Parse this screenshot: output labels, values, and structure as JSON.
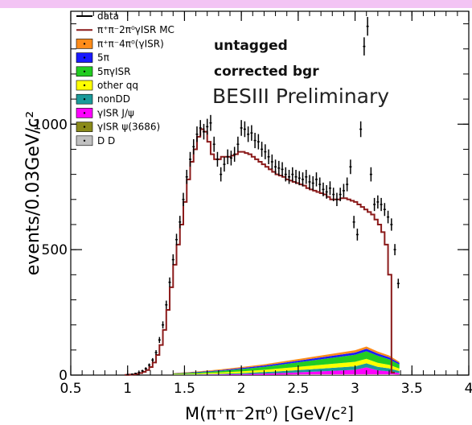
{
  "colors": {
    "top_band": "#f3c4f4",
    "data_markers": "#000000",
    "mc_line": "#8b1a1a"
  },
  "chart_data": {
    "type": "histogram",
    "xlabel": "M(π⁺π⁻2π⁰) [GeV/c²]",
    "ylabel": "events/0.03GeV/c²",
    "xlim": [
      0.5,
      4.0
    ],
    "ylim": [
      0,
      1450
    ],
    "x_ticks": [
      {
        "value": 0.5,
        "label": "0.5"
      },
      {
        "value": 1.0,
        "label": "1"
      },
      {
        "value": 1.5,
        "label": "1.5"
      },
      {
        "value": 2.0,
        "label": "2"
      },
      {
        "value": 2.5,
        "label": "2.5"
      },
      {
        "value": 3.0,
        "label": "3"
      },
      {
        "value": 3.5,
        "label": "3.5"
      },
      {
        "value": 4.0,
        "label": "4"
      }
    ],
    "y_ticks": [
      {
        "value": 0,
        "label": "0"
      },
      {
        "value": 500,
        "label": "500"
      },
      {
        "value": 1000,
        "label": "1000"
      }
    ],
    "annotations": [
      "untagged",
      "corrected bgr",
      "BESIII Preliminary"
    ],
    "legend": [
      {
        "label": "data",
        "symbol": "line",
        "color": "#000000"
      },
      {
        "label": "π⁺π⁻2π⁰γISR MC",
        "symbol": "line",
        "color": "#8b1a1a"
      },
      {
        "label": "π⁺π⁻4π⁰(γISR)",
        "symbol": "box",
        "color": "#ff8c1a"
      },
      {
        "label": "5π",
        "symbol": "box",
        "color": "#1a1aff"
      },
      {
        "label": "5πγISR",
        "symbol": "box",
        "color": "#22cc22"
      },
      {
        "label": "other qq",
        "symbol": "box",
        "color": "#ffff00"
      },
      {
        "label": "nonDD",
        "symbol": "box",
        "color": "#1a9a9a"
      },
      {
        "label": "γISR J/ψ",
        "symbol": "box",
        "color": "#ff00ff"
      },
      {
        "label": "γISR ψ(3686)",
        "symbol": "box",
        "color": "#8a8a1a"
      },
      {
        "label": "D D",
        "symbol": "box",
        "color": "#c0c0c0"
      }
    ],
    "data_points": [
      {
        "x": 1.0,
        "y": 2
      },
      {
        "x": 1.04,
        "y": 4
      },
      {
        "x": 1.07,
        "y": 7
      },
      {
        "x": 1.1,
        "y": 11
      },
      {
        "x": 1.13,
        "y": 17
      },
      {
        "x": 1.16,
        "y": 26
      },
      {
        "x": 1.19,
        "y": 40
      },
      {
        "x": 1.22,
        "y": 60
      },
      {
        "x": 1.25,
        "y": 90
      },
      {
        "x": 1.28,
        "y": 140
      },
      {
        "x": 1.31,
        "y": 200
      },
      {
        "x": 1.34,
        "y": 280
      },
      {
        "x": 1.37,
        "y": 370
      },
      {
        "x": 1.4,
        "y": 460
      },
      {
        "x": 1.43,
        "y": 540
      },
      {
        "x": 1.46,
        "y": 610
      },
      {
        "x": 1.49,
        "y": 700
      },
      {
        "x": 1.52,
        "y": 790
      },
      {
        "x": 1.55,
        "y": 860
      },
      {
        "x": 1.58,
        "y": 910
      },
      {
        "x": 1.61,
        "y": 960
      },
      {
        "x": 1.64,
        "y": 985
      },
      {
        "x": 1.67,
        "y": 970
      },
      {
        "x": 1.7,
        "y": 990
      },
      {
        "x": 1.73,
        "y": 1005
      },
      {
        "x": 1.76,
        "y": 920
      },
      {
        "x": 1.79,
        "y": 860
      },
      {
        "x": 1.82,
        "y": 800
      },
      {
        "x": 1.85,
        "y": 840
      },
      {
        "x": 1.88,
        "y": 870
      },
      {
        "x": 1.91,
        "y": 865
      },
      {
        "x": 1.94,
        "y": 880
      },
      {
        "x": 1.97,
        "y": 920
      },
      {
        "x": 2.0,
        "y": 985
      },
      {
        "x": 2.03,
        "y": 980
      },
      {
        "x": 2.06,
        "y": 960
      },
      {
        "x": 2.09,
        "y": 965
      },
      {
        "x": 2.12,
        "y": 935
      },
      {
        "x": 2.15,
        "y": 930
      },
      {
        "x": 2.18,
        "y": 900
      },
      {
        "x": 2.21,
        "y": 890
      },
      {
        "x": 2.24,
        "y": 870
      },
      {
        "x": 2.27,
        "y": 850
      },
      {
        "x": 2.3,
        "y": 830
      },
      {
        "x": 2.33,
        "y": 825
      },
      {
        "x": 2.36,
        "y": 820
      },
      {
        "x": 2.39,
        "y": 800
      },
      {
        "x": 2.42,
        "y": 790
      },
      {
        "x": 2.45,
        "y": 800
      },
      {
        "x": 2.48,
        "y": 790
      },
      {
        "x": 2.51,
        "y": 785
      },
      {
        "x": 2.54,
        "y": 780
      },
      {
        "x": 2.57,
        "y": 790
      },
      {
        "x": 2.6,
        "y": 770
      },
      {
        "x": 2.63,
        "y": 765
      },
      {
        "x": 2.66,
        "y": 780
      },
      {
        "x": 2.69,
        "y": 760
      },
      {
        "x": 2.72,
        "y": 740
      },
      {
        "x": 2.75,
        "y": 730
      },
      {
        "x": 2.78,
        "y": 745
      },
      {
        "x": 2.81,
        "y": 720
      },
      {
        "x": 2.84,
        "y": 700
      },
      {
        "x": 2.87,
        "y": 720
      },
      {
        "x": 2.9,
        "y": 735
      },
      {
        "x": 2.93,
        "y": 760
      },
      {
        "x": 2.96,
        "y": 830
      },
      {
        "x": 2.99,
        "y": 610
      },
      {
        "x": 3.02,
        "y": 560
      },
      {
        "x": 3.05,
        "y": 980
      },
      {
        "x": 3.08,
        "y": 1310
      },
      {
        "x": 3.11,
        "y": 1390
      },
      {
        "x": 3.14,
        "y": 800
      },
      {
        "x": 3.17,
        "y": 680
      },
      {
        "x": 3.2,
        "y": 690
      },
      {
        "x": 3.23,
        "y": 680
      },
      {
        "x": 3.26,
        "y": 660
      },
      {
        "x": 3.29,
        "y": 630
      },
      {
        "x": 3.32,
        "y": 600
      },
      {
        "x": 3.35,
        "y": 500
      },
      {
        "x": 3.38,
        "y": 365
      }
    ],
    "mc_histogram": {
      "bin_width": 0.03,
      "bin_lefts_start": 0.98,
      "values": [
        1,
        2,
        3,
        5,
        8,
        13,
        20,
        32,
        50,
        80,
        120,
        180,
        260,
        350,
        440,
        520,
        600,
        690,
        780,
        850,
        900,
        950,
        980,
        970,
        930,
        880,
        860,
        860,
        870,
        870,
        870,
        875,
        880,
        890,
        890,
        885,
        880,
        870,
        860,
        850,
        840,
        830,
        820,
        810,
        800,
        795,
        790,
        780,
        775,
        770,
        765,
        760,
        755,
        745,
        740,
        735,
        730,
        725,
        720,
        710,
        700,
        700,
        700,
        705,
        705,
        700,
        695,
        690,
        680,
        670,
        660,
        650,
        640,
        620,
        600,
        570,
        520,
        400,
        10
      ]
    },
    "background_stack_order": [
      "#c0c0c0",
      "#8a8a1a",
      "#ff00ff",
      "#1a9a9a",
      "#ffff00",
      "#22cc22",
      "#1a1aff",
      "#ff8c1a"
    ],
    "background_stack": [
      {
        "x": 1.4,
        "layers": [
          0,
          0,
          1,
          1,
          2,
          2,
          1,
          1
        ]
      },
      {
        "x": 1.6,
        "layers": [
          0,
          0,
          1,
          2,
          3,
          4,
          2,
          2
        ]
      },
      {
        "x": 1.8,
        "layers": [
          0,
          0,
          2,
          3,
          5,
          6,
          3,
          3
        ]
      },
      {
        "x": 2.0,
        "layers": [
          1,
          0,
          3,
          4,
          7,
          9,
          4,
          4
        ]
      },
      {
        "x": 2.2,
        "layers": [
          1,
          0,
          5,
          6,
          9,
          12,
          5,
          5
        ]
      },
      {
        "x": 2.4,
        "layers": [
          1,
          1,
          7,
          8,
          12,
          16,
          6,
          6
        ]
      },
      {
        "x": 2.6,
        "layers": [
          2,
          1,
          10,
          10,
          14,
          20,
          7,
          7
        ]
      },
      {
        "x": 2.8,
        "layers": [
          2,
          1,
          14,
          12,
          16,
          24,
          8,
          8
        ]
      },
      {
        "x": 3.0,
        "layers": [
          2,
          1,
          18,
          14,
          18,
          28,
          9,
          9
        ]
      },
      {
        "x": 3.1,
        "layers": [
          2,
          1,
          28,
          16,
          18,
          30,
          10,
          9
        ]
      },
      {
        "x": 3.2,
        "layers": [
          2,
          1,
          16,
          14,
          16,
          28,
          9,
          8
        ]
      },
      {
        "x": 3.3,
        "layers": [
          2,
          1,
          12,
          12,
          14,
          22,
          8,
          7
        ]
      },
      {
        "x": 3.39,
        "layers": [
          1,
          1,
          6,
          8,
          10,
          16,
          6,
          5
        ]
      }
    ]
  }
}
